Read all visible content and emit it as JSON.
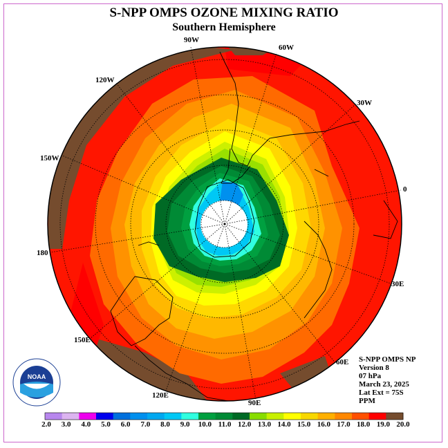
{
  "title": "S-NPP OMPS OZONE MIXING RATIO",
  "subtitle": "Southern Hemisphere",
  "longitude_labels": {
    "w90": "90W",
    "w60": "60W",
    "w30": "30W",
    "zero": "0",
    "e30": "30E",
    "e60": "60E",
    "e90": "90E",
    "e120": "120E",
    "e150": "150E",
    "lon180": "180",
    "w150": "150W",
    "w120": "120W"
  },
  "info": {
    "instrument": "S-NPP OMPS NP",
    "version": "Version 8",
    "pressure": "07 hPa",
    "date": "March 23, 2025",
    "lat_ext": "Lat Ext = 75S",
    "units": "PPM"
  },
  "logo": {
    "text": "NOAA"
  },
  "colorbar": {
    "labels": [
      "2.0",
      "3.0",
      "4.0",
      "5.0",
      "6.0",
      "7.0",
      "8.0",
      "9.0",
      "10.0",
      "11.0",
      "12.0",
      "13.0",
      "14.0",
      "15.0",
      "16.0",
      "17.0",
      "18.0",
      "19.0",
      "20.0"
    ],
    "colors": [
      "#b887ee",
      "#dcb4f0",
      "#ee00ee",
      "#0000ee",
      "#0070dd",
      "#0090ee",
      "#00a8f0",
      "#00c8f5",
      "#30ffe0",
      "#00a040",
      "#008a35",
      "#006a25",
      "#88dd00",
      "#c8f000",
      "#ffff00",
      "#f8d800",
      "#ffb000",
      "#ff8800",
      "#ff5000",
      "#ff0000",
      "#754c2e"
    ]
  }
}
